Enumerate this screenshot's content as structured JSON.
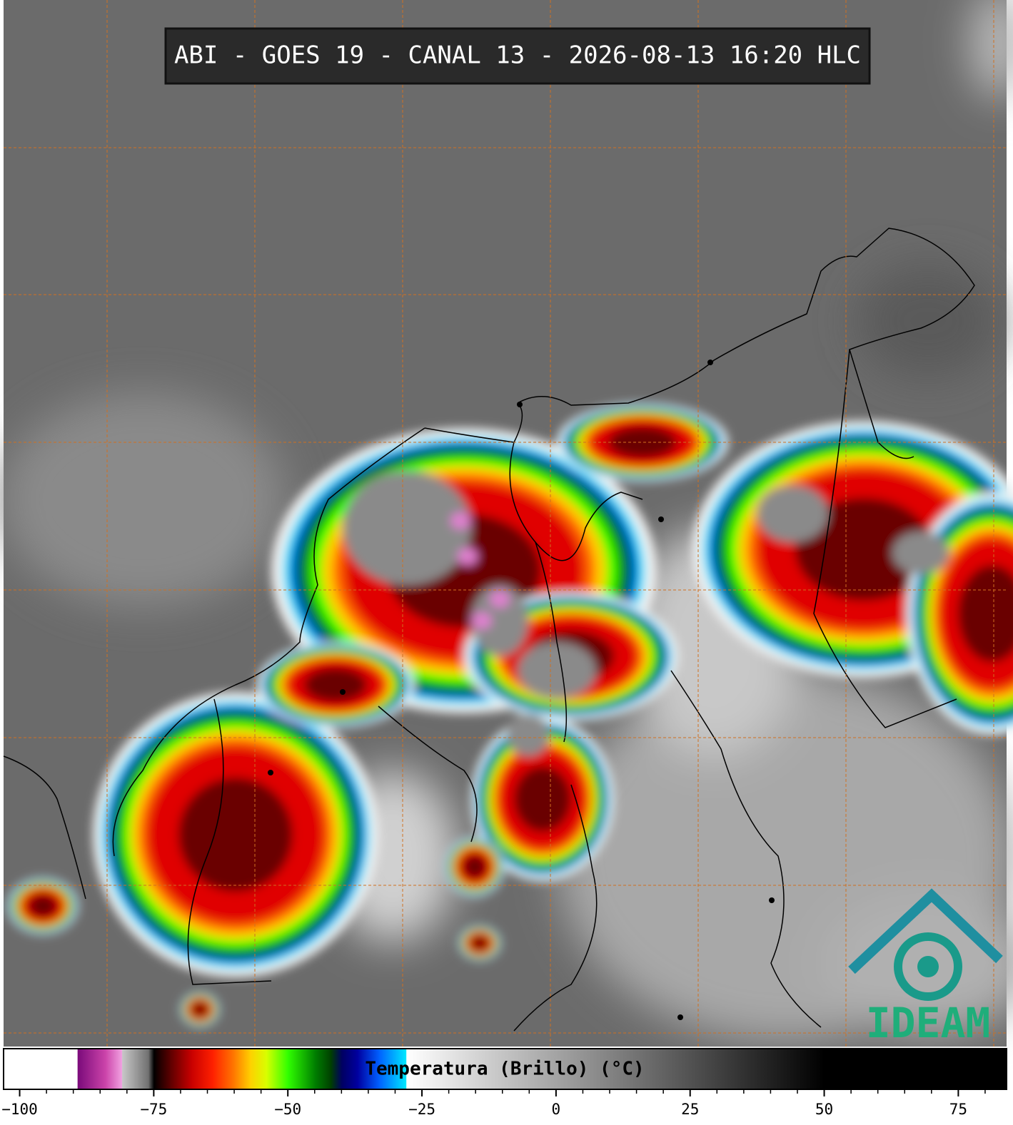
{
  "title": "ABI - GOES 19 - CANAL 13 - 2026-08-13 16:20 HLC",
  "logo": "IDEAM",
  "colorbar": {
    "label": "Temperatura (Brillo) (°C)",
    "lim": [
      -103,
      84
    ],
    "ticks": [
      {
        "value": -100,
        "label": "−100"
      },
      {
        "value": -75,
        "label": "−75"
      },
      {
        "value": -50,
        "label": "−50"
      },
      {
        "value": -25,
        "label": "−25"
      },
      0,
      25,
      50,
      75
    ],
    "minor_ticks": [
      -95,
      -90,
      -85,
      -80,
      -70,
      -65,
      -60,
      -55,
      -45,
      -40,
      -35,
      -30,
      -20,
      -15,
      -10,
      -5,
      5,
      10,
      15,
      20,
      30,
      35,
      40,
      45,
      55,
      60,
      65,
      70,
      80
    ],
    "colormap": [
      {
        "value": -103,
        "color": "#ffffff"
      },
      {
        "value": -89.3,
        "color": "#ffffff"
      },
      {
        "value": -89.2,
        "color": "#7a0a7a"
      },
      {
        "value": -84,
        "color": "#cc44aa"
      },
      {
        "value": -81,
        "color": "#f0a0e0"
      },
      {
        "value": -80.9,
        "color": "#c8c8c8"
      },
      {
        "value": -76,
        "color": "#707070"
      },
      {
        "value": -75,
        "color": "#000000"
      },
      {
        "value": -72,
        "color": "#5a0000"
      },
      {
        "value": -68,
        "color": "#c80000"
      },
      {
        "value": -64,
        "color": "#ff2000"
      },
      {
        "value": -60,
        "color": "#ff7a00"
      },
      {
        "value": -57,
        "color": "#ffd000"
      },
      {
        "value": -54,
        "color": "#d8ff00"
      },
      {
        "value": -50,
        "color": "#30ff00"
      },
      {
        "value": -45,
        "color": "#008000"
      },
      {
        "value": -42,
        "color": "#004000"
      },
      {
        "value": -40,
        "color": "#000060"
      },
      {
        "value": -37,
        "color": "#0000a0"
      },
      {
        "value": -33,
        "color": "#0060ff"
      },
      {
        "value": -28,
        "color": "#00e8ff"
      },
      {
        "value": -27.9,
        "color": "#ffffff"
      },
      {
        "value": 50,
        "color": "#000000"
      },
      {
        "value": 84,
        "color": "#000000"
      }
    ]
  }
}
